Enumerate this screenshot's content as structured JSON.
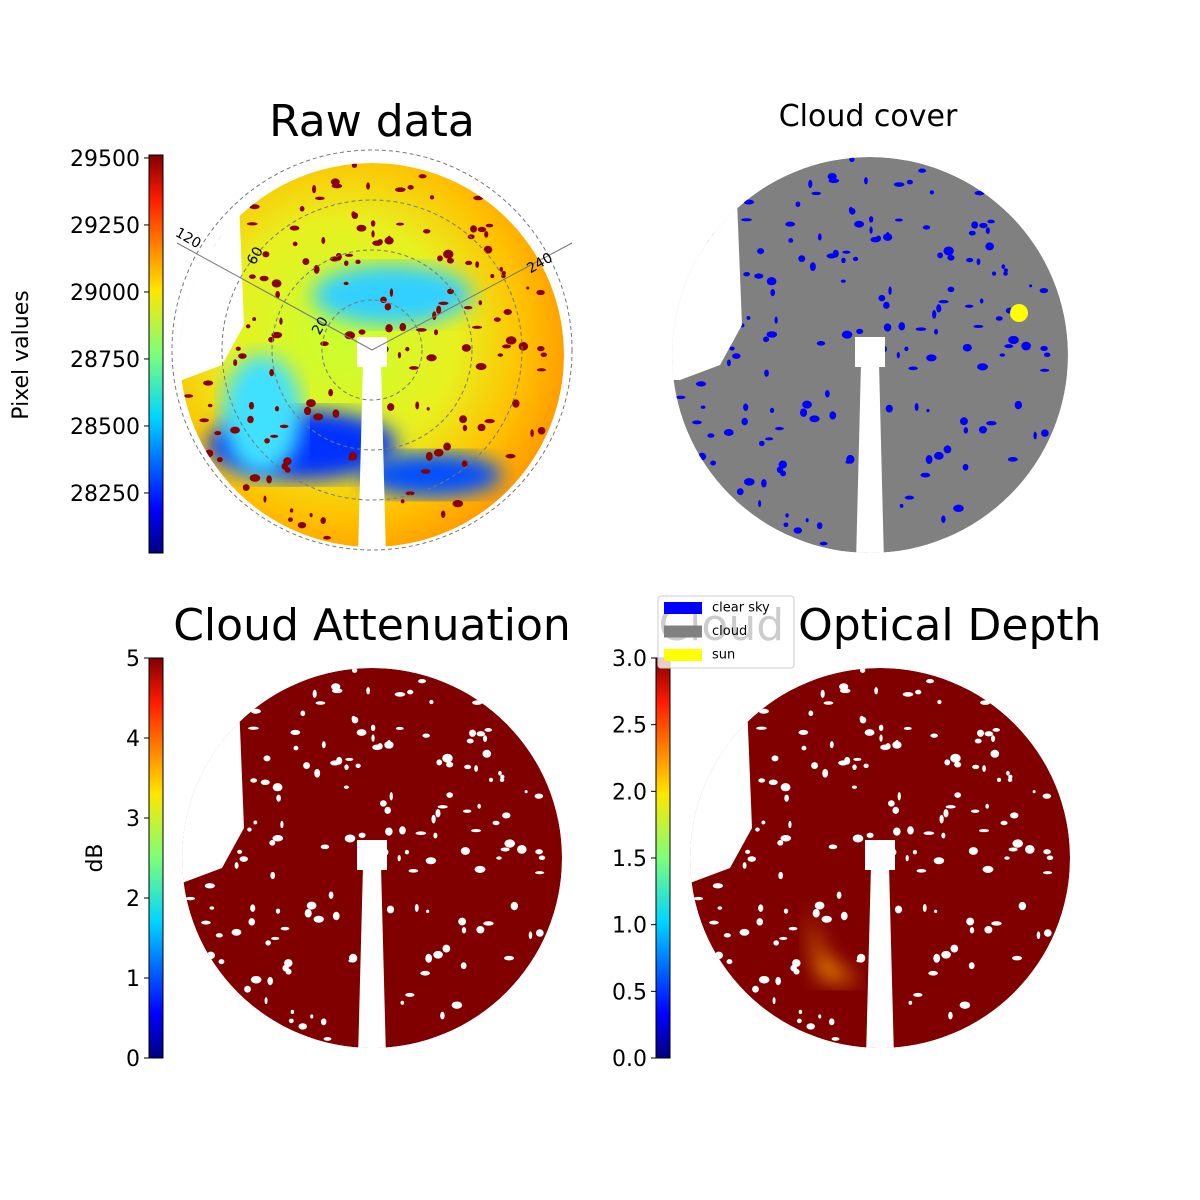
{
  "chart_data": [
    {
      "type": "image",
      "title": "Raw data",
      "colorbar": {
        "label": "Pixel values",
        "lim": [
          28026,
          29511
        ],
        "ticks": [
          28250,
          28500,
          28750,
          29000,
          29250,
          29500
        ]
      },
      "annotations": [
        "120",
        "60",
        "20",
        "240"
      ]
    },
    {
      "type": "image",
      "title": "Cloud cover",
      "legend": {
        "series": [
          {
            "name": "clear sky",
            "color": "#0000ff"
          },
          {
            "name": "cloud",
            "color": "#808080"
          },
          {
            "name": "sun",
            "color": "#ffff00"
          }
        ]
      }
    },
    {
      "type": "image",
      "title": "Cloud Attenuation",
      "colorbar": {
        "label": "dB",
        "lim": [
          0,
          5
        ],
        "ticks": [
          0,
          1,
          2,
          3,
          4,
          5
        ]
      }
    },
    {
      "type": "image",
      "title": "Cloud Optical Depth",
      "colorbar": {
        "lim": [
          0,
          3
        ],
        "ticks": [
          {
            "value": 0,
            "label": "0.0"
          },
          {
            "value": 0.5,
            "label": "0.5"
          },
          {
            "value": 1,
            "label": "1.0"
          },
          {
            "value": 1.5,
            "label": "1.5"
          },
          {
            "value": 2,
            "label": "2.0"
          },
          {
            "value": 2.5,
            "label": "2.5"
          },
          {
            "value": 3,
            "label": "3.0"
          }
        ]
      }
    }
  ]
}
